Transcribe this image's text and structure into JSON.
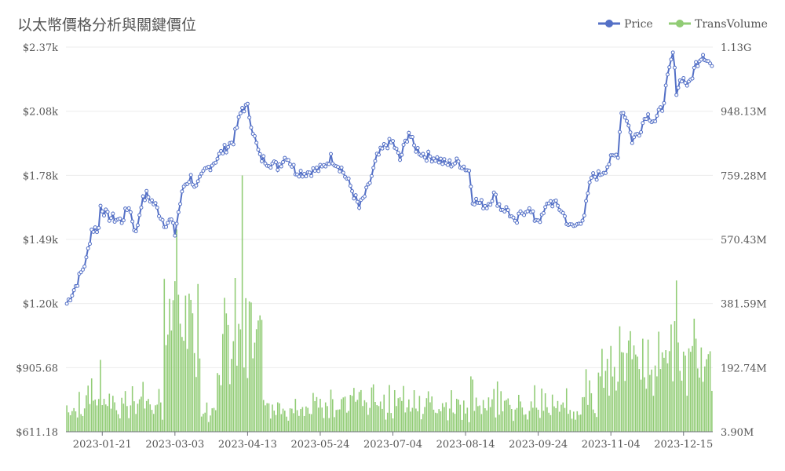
{
  "chart_data": {
    "type": "line+bar",
    "title": "以太幣價格分析與關鍵價位",
    "legend": {
      "position": "top-right",
      "items": [
        {
          "name": "Price",
          "color": "#5470c6"
        },
        {
          "name": "TransVolume",
          "color": "#91cc75"
        }
      ]
    },
    "y_left": {
      "ticks": [
        "$2.37k",
        "$2.08k",
        "$1.78k",
        "$1.49k",
        "$1.20k",
        "$905.68",
        "$611.18"
      ],
      "range": [
        611.18,
        2378.17
      ]
    },
    "y_right": {
      "ticks": [
        "1.13G",
        "948.13M",
        "759.28M",
        "570.43M",
        "381.59M",
        "192.74M",
        "3.90M"
      ],
      "range": [
        3900000,
        1137000000
      ]
    },
    "x_axis": {
      "start_date": "2023-01-01",
      "days": 365,
      "tick_labels": [
        "2023-01-21",
        "2023-03-03",
        "2023-04-13",
        "2023-05-24",
        "2023-07-04",
        "2023-08-14",
        "2023-09-24",
        "2023-11-04",
        "2023-12-15"
      ]
    },
    "series": [
      {
        "name": "Price",
        "type": "line",
        "color": "#5470c6",
        "points": [
          [
            "2023-01-01",
            1200
          ],
          [
            "2023-01-06",
            1280
          ],
          [
            "2023-01-12",
            1400
          ],
          [
            "2023-01-15",
            1540
          ],
          [
            "2023-01-19",
            1545
          ],
          [
            "2023-01-20",
            1650
          ],
          [
            "2023-01-24",
            1600
          ],
          [
            "2023-02-01",
            1580
          ],
          [
            "2023-02-05",
            1650
          ],
          [
            "2023-02-09",
            1520
          ],
          [
            "2023-02-12",
            1660
          ],
          [
            "2023-02-15",
            1700
          ],
          [
            "2023-02-20",
            1650
          ],
          [
            "2023-02-25",
            1570
          ],
          [
            "2023-03-01",
            1580
          ],
          [
            "2023-03-03",
            1520
          ],
          [
            "2023-03-05",
            1620
          ],
          [
            "2023-03-08",
            1740
          ],
          [
            "2023-03-12",
            1780
          ],
          [
            "2023-03-15",
            1730
          ],
          [
            "2023-03-20",
            1810
          ],
          [
            "2023-03-25",
            1850
          ],
          [
            "2023-03-30",
            1900
          ],
          [
            "2023-04-05",
            1950
          ],
          [
            "2023-04-10",
            2100
          ],
          [
            "2023-04-13",
            2100
          ],
          [
            "2023-04-17",
            1960
          ],
          [
            "2023-04-20",
            1870
          ],
          [
            "2023-04-25",
            1850
          ],
          [
            "2023-04-30",
            1830
          ],
          [
            "2023-05-05",
            1880
          ],
          [
            "2023-05-10",
            1810
          ],
          [
            "2023-05-15",
            1800
          ],
          [
            "2023-05-20",
            1810
          ],
          [
            "2023-05-25",
            1820
          ],
          [
            "2023-05-30",
            1870
          ],
          [
            "2023-06-05",
            1820
          ],
          [
            "2023-06-10",
            1740
          ],
          [
            "2023-06-15",
            1640
          ],
          [
            "2023-06-20",
            1730
          ],
          [
            "2023-06-25",
            1870
          ],
          [
            "2023-06-30",
            1930
          ],
          [
            "2023-07-04",
            1940
          ],
          [
            "2023-07-08",
            1860
          ],
          [
            "2023-07-13",
            1990
          ],
          [
            "2023-07-16",
            1920
          ],
          [
            "2023-07-22",
            1880
          ],
          [
            "2023-07-28",
            1870
          ],
          [
            "2023-08-03",
            1840
          ],
          [
            "2023-08-10",
            1850
          ],
          [
            "2023-08-16",
            1810
          ],
          [
            "2023-08-18",
            1680
          ],
          [
            "2023-08-22",
            1660
          ],
          [
            "2023-08-26",
            1650
          ],
          [
            "2023-08-30",
            1700
          ],
          [
            "2023-09-03",
            1640
          ],
          [
            "2023-09-07",
            1630
          ],
          [
            "2023-09-11",
            1560
          ],
          [
            "2023-09-14",
            1610
          ],
          [
            "2023-09-18",
            1640
          ],
          [
            "2023-09-22",
            1590
          ],
          [
            "2023-09-26",
            1590
          ],
          [
            "2023-09-30",
            1670
          ],
          [
            "2023-10-03",
            1660
          ],
          [
            "2023-10-07",
            1630
          ],
          [
            "2023-10-12",
            1550
          ],
          [
            "2023-10-16",
            1560
          ],
          [
            "2023-10-20",
            1610
          ],
          [
            "2023-10-24",
            1780
          ],
          [
            "2023-10-28",
            1790
          ],
          [
            "2023-11-01",
            1820
          ],
          [
            "2023-11-04",
            1860
          ],
          [
            "2023-11-08",
            1890
          ],
          [
            "2023-11-10",
            2090
          ],
          [
            "2023-11-13",
            2050
          ],
          [
            "2023-11-16",
            1950
          ],
          [
            "2023-11-20",
            1990
          ],
          [
            "2023-11-24",
            2070
          ],
          [
            "2023-11-29",
            2040
          ],
          [
            "2023-12-03",
            2100
          ],
          [
            "2023-12-06",
            2230
          ],
          [
            "2023-12-09",
            2350
          ],
          [
            "2023-12-11",
            2180
          ],
          [
            "2023-12-14",
            2240
          ],
          [
            "2023-12-18",
            2200
          ],
          [
            "2023-12-22",
            2300
          ],
          [
            "2023-12-26",
            2350
          ],
          [
            "2023-12-31",
            2290
          ]
        ]
      },
      {
        "name": "TransVolume",
        "type": "bar",
        "color": "#91cc75"
      }
    ]
  }
}
